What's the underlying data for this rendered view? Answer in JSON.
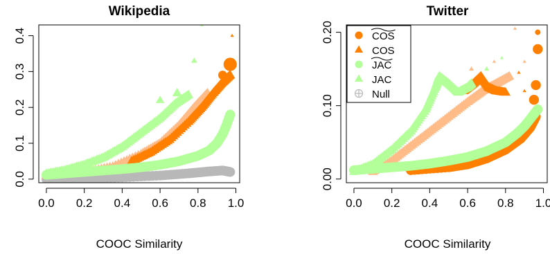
{
  "colors": {
    "cos_tilde": "#ff8000",
    "cos": "#ffbb88",
    "jac_tilde": "#b3ff99",
    "jac": "#b3ff99",
    "null": "#b8b8b8",
    "axis": "#000000"
  },
  "chart_data": [
    {
      "type": "scatter",
      "title": "Wikipedia",
      "xlabel": "COOC Similarity",
      "ylabel": "",
      "xlim": [
        -0.04,
        1.02
      ],
      "ylim": [
        -0.01,
        0.43
      ],
      "xticks": [
        0.0,
        0.2,
        0.4,
        0.6,
        0.8,
        1.0
      ],
      "xtick_labels": [
        "0.0",
        "0.2",
        "0.4",
        "0.6",
        "0.8",
        "1.0"
      ],
      "yticks": [
        0.0,
        0.1,
        0.2,
        0.3,
        0.4
      ],
      "ytick_labels": [
        "0.0",
        "0.1",
        "0.2",
        "0.3",
        "0.4"
      ],
      "legend": null,
      "series": [
        {
          "key": "null",
          "marker": "circle",
          "color": "null",
          "points": [
            [
              0.0,
              0.0
            ],
            [
              0.2,
              0.002
            ],
            [
              0.4,
              0.005
            ],
            [
              0.6,
              0.01
            ],
            [
              0.75,
              0.016
            ],
            [
              0.85,
              0.021
            ],
            [
              0.93,
              0.024
            ],
            [
              0.97,
              0.02
            ]
          ]
        },
        {
          "key": "cos",
          "marker": "triangle",
          "color": "cos",
          "points": [
            [
              0.0,
              0.01
            ],
            [
              0.2,
              0.018
            ],
            [
              0.35,
              0.035
            ],
            [
              0.5,
              0.07
            ],
            [
              0.6,
              0.1
            ],
            [
              0.7,
              0.15
            ],
            [
              0.78,
              0.2
            ],
            [
              0.85,
              0.24
            ]
          ]
        },
        {
          "key": "cos_tilde",
          "marker": "triangle",
          "color": "cos_tilde",
          "points": [
            [
              0.45,
              0.05
            ],
            [
              0.55,
              0.075
            ],
            [
              0.65,
              0.11
            ],
            [
              0.75,
              0.16
            ],
            [
              0.82,
              0.2
            ],
            [
              0.88,
              0.24
            ],
            [
              0.93,
              0.27
            ],
            [
              0.97,
              0.29
            ]
          ],
          "extra": [
            [
              0.97,
              0.32,
              "circle",
              12
            ],
            [
              0.93,
              0.29,
              "circle",
              8
            ],
            [
              0.98,
              0.4,
              "triangle",
              3
            ]
          ]
        },
        {
          "key": "jac",
          "marker": "triangle",
          "color": "jac",
          "points": [
            [
              0.0,
              0.015
            ],
            [
              0.1,
              0.025
            ],
            [
              0.2,
              0.04
            ],
            [
              0.3,
              0.06
            ],
            [
              0.4,
              0.09
            ],
            [
              0.5,
              0.13
            ],
            [
              0.6,
              0.17
            ],
            [
              0.68,
              0.21
            ],
            [
              0.75,
              0.235
            ]
          ],
          "extra": [
            [
              0.6,
              0.22,
              "triangle",
              7
            ],
            [
              0.69,
              0.24,
              "triangle",
              8
            ],
            [
              0.78,
              0.33,
              "triangle",
              5
            ],
            [
              0.82,
              0.43,
              "triangle",
              3
            ]
          ]
        },
        {
          "key": "jac_tilde",
          "marker": "circle",
          "color": "jac_tilde",
          "points": [
            [
              0.0,
              0.012
            ],
            [
              0.1,
              0.016
            ],
            [
              0.2,
              0.02
            ],
            [
              0.3,
              0.024
            ],
            [
              0.4,
              0.028
            ],
            [
              0.5,
              0.033
            ],
            [
              0.6,
              0.04
            ],
            [
              0.7,
              0.05
            ],
            [
              0.8,
              0.065
            ],
            [
              0.86,
              0.08
            ],
            [
              0.9,
              0.1
            ],
            [
              0.93,
              0.125
            ],
            [
              0.95,
              0.15
            ],
            [
              0.97,
              0.18
            ]
          ]
        }
      ]
    },
    {
      "type": "scatter",
      "title": "Twitter",
      "xlabel": "COOC Similarity",
      "ylabel": "",
      "xlim": [
        -0.04,
        1.02
      ],
      "ylim": [
        -0.005,
        0.21
      ],
      "xticks": [
        0.0,
        0.2,
        0.4,
        0.6,
        0.8,
        1.0
      ],
      "xtick_labels": [
        "0.0",
        "0.2",
        "0.4",
        "0.6",
        "0.8",
        "1.0"
      ],
      "yticks": [
        0.0,
        0.1,
        0.2
      ],
      "ytick_labels": [
        "0.00",
        "0.10",
        "0.20"
      ],
      "legend": {
        "position": "top-left",
        "entries": [
          {
            "label": "COS",
            "overline": true,
            "marker": "circle",
            "color": "cos_tilde"
          },
          {
            "label": "COS",
            "overline": false,
            "marker": "triangle",
            "color": "cos_tilde"
          },
          {
            "label": "JAC",
            "overline": true,
            "marker": "circle",
            "color": "jac_tilde"
          },
          {
            "label": "JAC",
            "overline": false,
            "marker": "triangle",
            "color": "jac"
          },
          {
            "label": "Null",
            "overline": false,
            "marker": "circle-plus",
            "color": "null"
          }
        ]
      },
      "series": [
        {
          "key": "cos_tilde",
          "marker": "circle",
          "color": "cos_tilde",
          "points": [
            [
              0.3,
              0.012
            ],
            [
              0.5,
              0.016
            ],
            [
              0.6,
              0.02
            ],
            [
              0.7,
              0.028
            ],
            [
              0.8,
              0.04
            ],
            [
              0.88,
              0.055
            ],
            [
              0.93,
              0.07
            ],
            [
              0.96,
              0.085
            ]
          ],
          "extra": [
            [
              0.97,
              0.2,
              "circle",
              5
            ],
            [
              0.97,
              0.177,
              "circle",
              9
            ],
            [
              0.96,
              0.128,
              "circle",
              9
            ],
            [
              0.95,
              0.108,
              "circle",
              9
            ]
          ]
        },
        {
          "key": "cos",
          "marker": "triangle",
          "color": "cos",
          "points": [
            [
              0.1,
              0.01
            ],
            [
              0.2,
              0.025
            ],
            [
              0.3,
              0.045
            ],
            [
              0.4,
              0.065
            ],
            [
              0.5,
              0.085
            ],
            [
              0.6,
              0.105
            ],
            [
              0.68,
              0.12
            ],
            [
              0.75,
              0.13
            ],
            [
              0.82,
              0.14
            ]
          ],
          "extra": [
            [
              0.62,
              0.15,
              "triangle",
              4
            ],
            [
              0.74,
              0.16,
              "triangle",
              3
            ],
            [
              0.85,
              0.205,
              "triangle",
              3
            ],
            [
              0.9,
              0.16,
              "triangle",
              3
            ]
          ]
        },
        {
          "key": "cos_tilde_tri",
          "marker": "triangle",
          "color": "cos_tilde",
          "points": [
            [
              0.58,
              0.12
            ],
            [
              0.63,
              0.13
            ],
            [
              0.67,
              0.14
            ],
            [
              0.71,
              0.125
            ],
            [
              0.75,
              0.12
            ],
            [
              0.8,
              0.118
            ]
          ],
          "extra": [
            [
              0.87,
              0.145,
              "triangle",
              3
            ],
            [
              0.9,
              0.12,
              "triangle",
              3
            ]
          ]
        },
        {
          "key": "jac",
          "marker": "triangle",
          "color": "jac",
          "points": [
            [
              0.0,
              0.01
            ],
            [
              0.1,
              0.02
            ],
            [
              0.2,
              0.04
            ],
            [
              0.3,
              0.065
            ],
            [
              0.38,
              0.095
            ],
            [
              0.43,
              0.125
            ],
            [
              0.45,
              0.14
            ],
            [
              0.5,
              0.13
            ],
            [
              0.55,
              0.118
            ],
            [
              0.6,
              0.125
            ],
            [
              0.62,
              0.13
            ]
          ],
          "extra": [
            [
              0.7,
              0.15,
              "triangle",
              4
            ],
            [
              0.78,
              0.165,
              "triangle",
              3
            ]
          ]
        },
        {
          "key": "jac_tilde",
          "marker": "circle",
          "color": "jac_tilde",
          "points": [
            [
              0.0,
              0.012
            ],
            [
              0.1,
              0.014
            ],
            [
              0.2,
              0.016
            ],
            [
              0.3,
              0.018
            ],
            [
              0.4,
              0.021
            ],
            [
              0.5,
              0.025
            ],
            [
              0.6,
              0.03
            ],
            [
              0.7,
              0.038
            ],
            [
              0.8,
              0.05
            ],
            [
              0.86,
              0.062
            ],
            [
              0.9,
              0.072
            ],
            [
              0.94,
              0.085
            ],
            [
              0.97,
              0.095
            ]
          ]
        }
      ]
    }
  ]
}
